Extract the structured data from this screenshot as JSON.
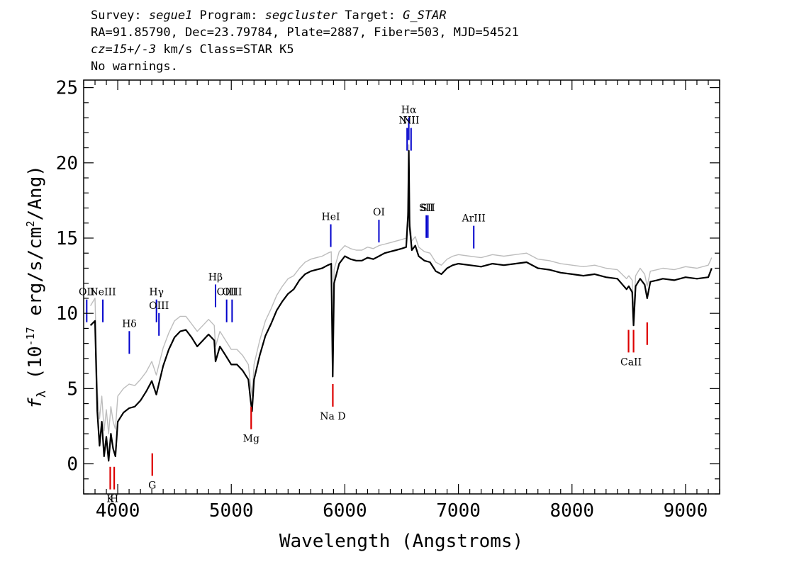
{
  "header": {
    "line1": {
      "survey_label": "Survey: ",
      "survey": "segue1",
      "program_label": " Program: ",
      "program": "segcluster",
      "target_label": " Target: ",
      "target": "G_STAR"
    },
    "line2": "RA=91.85790, Dec=23.79784, Plate=2887, Fiber=503, MJD=54521",
    "line3": {
      "cz": "cz=15+/-3",
      "rest": " km/s Class=STAR K5"
    },
    "line4": "No warnings."
  },
  "chart_data": {
    "type": "line",
    "title": "",
    "xlabel": "Wavelength (Angstroms)",
    "ylabel": "f_λ (10^-17 erg/s/cm^2/Ang)",
    "xlim": [
      3700,
      9300
    ],
    "ylim": [
      -2,
      25.5
    ],
    "xticks": [
      4000,
      5000,
      6000,
      7000,
      8000,
      9000
    ],
    "yticks": [
      0,
      5,
      10,
      15,
      20,
      25
    ],
    "grid": false,
    "series": [
      {
        "name": "",
        "color": "#000000",
        "x": [
          3760,
          3800,
          3820,
          3840,
          3860,
          3880,
          3900,
          3920,
          3940,
          3960,
          3980,
          4000,
          4050,
          4100,
          4150,
          4200,
          4250,
          4300,
          4340,
          4400,
          4450,
          4500,
          4550,
          4600,
          4650,
          4700,
          4750,
          4800,
          4850,
          4861,
          4900,
          4950,
          5000,
          5050,
          5100,
          5150,
          5170,
          5183,
          5200,
          5250,
          5300,
          5350,
          5400,
          5450,
          5500,
          5550,
          5600,
          5650,
          5700,
          5750,
          5800,
          5850,
          5880,
          5893,
          5905,
          5950,
          6000,
          6050,
          6100,
          6150,
          6200,
          6250,
          6300,
          6350,
          6400,
          6450,
          6500,
          6540,
          6556,
          6563,
          6570,
          6590,
          6620,
          6650,
          6700,
          6750,
          6800,
          6850,
          6900,
          6950,
          7000,
          7100,
          7200,
          7300,
          7400,
          7500,
          7600,
          7700,
          7800,
          7900,
          8000,
          8100,
          8200,
          8300,
          8400,
          8480,
          8500,
          8530,
          8542,
          8560,
          8600,
          8640,
          8662,
          8690,
          8750,
          8800,
          8900,
          9000,
          9100,
          9200,
          9230
        ],
        "values": [
          9.2,
          9.5,
          3.5,
          1.2,
          2.8,
          0.5,
          1.8,
          0.2,
          2.0,
          1.0,
          0.5,
          2.8,
          3.4,
          3.7,
          3.8,
          4.2,
          4.8,
          5.5,
          4.6,
          6.5,
          7.6,
          8.4,
          8.8,
          8.9,
          8.4,
          7.8,
          8.2,
          8.6,
          8.2,
          6.8,
          7.8,
          7.2,
          6.6,
          6.6,
          6.2,
          5.6,
          4.2,
          3.5,
          5.6,
          7.2,
          8.5,
          9.3,
          10.2,
          10.8,
          11.3,
          11.6,
          12.2,
          12.6,
          12.8,
          12.9,
          13.0,
          13.2,
          13.3,
          5.8,
          12.0,
          13.3,
          13.8,
          13.6,
          13.5,
          13.5,
          13.7,
          13.6,
          13.8,
          14.0,
          14.1,
          14.2,
          14.3,
          14.4,
          16.5,
          20.8,
          15.8,
          14.2,
          14.5,
          13.8,
          13.5,
          13.4,
          12.8,
          12.6,
          13.0,
          13.2,
          13.3,
          13.2,
          13.1,
          13.3,
          13.2,
          13.3,
          13.4,
          13.0,
          12.9,
          12.7,
          12.6,
          12.5,
          12.6,
          12.4,
          12.3,
          11.6,
          11.8,
          11.4,
          9.2,
          11.8,
          12.3,
          11.9,
          11.0,
          12.1,
          12.2,
          12.3,
          12.2,
          12.4,
          12.3,
          12.4,
          13.0
        ]
      },
      {
        "name": "",
        "color": "#bdbdbd",
        "x": [
          3760,
          3800,
          3820,
          3840,
          3860,
          3880,
          3900,
          3920,
          3940,
          3960,
          3980,
          4000,
          4050,
          4100,
          4150,
          4200,
          4250,
          4300,
          4340,
          4400,
          4450,
          4500,
          4550,
          4600,
          4650,
          4700,
          4750,
          4800,
          4850,
          4861,
          4900,
          4950,
          5000,
          5050,
          5100,
          5150,
          5170,
          5183,
          5200,
          5250,
          5300,
          5350,
          5400,
          5450,
          5500,
          5550,
          5600,
          5650,
          5700,
          5750,
          5800,
          5850,
          5880,
          5893,
          5905,
          5950,
          6000,
          6050,
          6100,
          6150,
          6200,
          6250,
          6300,
          6350,
          6400,
          6450,
          6500,
          6540,
          6556,
          6563,
          6570,
          6590,
          6620,
          6650,
          6700,
          6750,
          6800,
          6850,
          6900,
          6950,
          7000,
          7100,
          7200,
          7300,
          7400,
          7500,
          7600,
          7700,
          7800,
          7900,
          8000,
          8100,
          8200,
          8300,
          8400,
          8480,
          8500,
          8530,
          8542,
          8560,
          8600,
          8640,
          8662,
          8690,
          8750,
          8800,
          8900,
          9000,
          9100,
          9200,
          9230
        ],
        "values": [
          10.5,
          11.0,
          5.0,
          3.0,
          4.5,
          2.2,
          3.6,
          2.0,
          3.8,
          2.8,
          2.3,
          4.5,
          5.0,
          5.3,
          5.2,
          5.6,
          6.1,
          6.8,
          5.9,
          7.7,
          8.7,
          9.5,
          9.8,
          9.8,
          9.3,
          8.8,
          9.2,
          9.6,
          9.2,
          7.8,
          8.8,
          8.2,
          7.6,
          7.6,
          7.2,
          6.6,
          5.2,
          4.5,
          6.6,
          8.2,
          9.5,
          10.3,
          11.2,
          11.8,
          12.3,
          12.5,
          13.0,
          13.4,
          13.6,
          13.7,
          13.8,
          14.0,
          14.1,
          6.8,
          12.9,
          14.1,
          14.5,
          14.3,
          14.2,
          14.2,
          14.4,
          14.3,
          14.5,
          14.6,
          14.7,
          14.8,
          14.9,
          15.0,
          17.0,
          21.2,
          16.3,
          14.8,
          15.1,
          14.4,
          14.1,
          14.0,
          13.4,
          13.2,
          13.6,
          13.8,
          13.9,
          13.8,
          13.7,
          13.9,
          13.8,
          13.9,
          14.0,
          13.6,
          13.5,
          13.3,
          13.2,
          13.1,
          13.2,
          13.0,
          12.9,
          12.3,
          12.5,
          12.2,
          10.0,
          12.5,
          13.0,
          12.6,
          11.8,
          12.8,
          12.9,
          13.0,
          12.9,
          13.1,
          13.0,
          13.2,
          13.7
        ]
      }
    ],
    "emission_lines": [
      {
        "label": "OII",
        "wavelength": 3727,
        "y_label": 11.2
      },
      {
        "label": "NeIII",
        "wavelength": 3869,
        "y_label": 11.2
      },
      {
        "label": "Hδ",
        "wavelength": 4102,
        "y_label": 9.1
      },
      {
        "label": "Hγ",
        "wavelength": 4341,
        "y_label": 11.2
      },
      {
        "label": "OIII",
        "wavelength": 4363,
        "y_label": 10.3
      },
      {
        "label": "Hβ",
        "wavelength": 4861,
        "y_label": 12.2
      },
      {
        "label": "OIII",
        "wavelength": 4959,
        "y_label": 11.2
      },
      {
        "label": "OIII",
        "wavelength": 5007,
        "y_label": 11.2
      },
      {
        "label": "HeI",
        "wavelength": 5876,
        "y_label": 16.2
      },
      {
        "label": "OI",
        "wavelength": 6300,
        "y_label": 16.5
      },
      {
        "label": "NII",
        "wavelength": 6548,
        "y_label": 22.6
      },
      {
        "label": "Hα",
        "wavelength": 6563,
        "y_label": 23.3
      },
      {
        "label": "NII",
        "wavelength": 6583,
        "y_label": 22.6
      },
      {
        "label": "SII",
        "wavelength": 6717,
        "y_label": 16.8
      },
      {
        "label": "SII",
        "wavelength": 6731,
        "y_label": 16.8
      },
      {
        "label": "ArIII",
        "wavelength": 7135,
        "y_label": 16.1
      }
    ],
    "absorption_lines": [
      {
        "label": "K",
        "wavelength": 3934
      },
      {
        "label": "H",
        "wavelength": 3969
      },
      {
        "label": "G",
        "wavelength": 4304
      },
      {
        "label": "Mg",
        "wavelength": 5175
      },
      {
        "label": "Na D",
        "wavelength": 5894
      },
      {
        "label": "CaII",
        "wavelength": 8498
      },
      {
        "label": "CaII",
        "wavelength": 8542
      },
      {
        "label": "CaII",
        "wavelength": 8662
      }
    ],
    "colors": {
      "emission_marker": "#0000cc",
      "absorption_marker": "#dd0000"
    }
  }
}
